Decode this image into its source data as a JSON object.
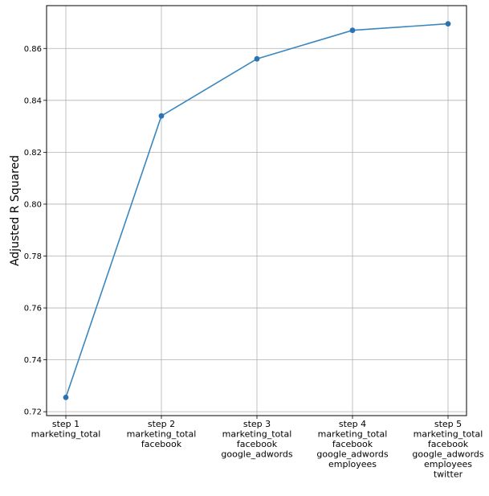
{
  "chart_data": {
    "type": "line",
    "title": "",
    "xlabel": "",
    "ylabel": "Adjusted R Squared",
    "ylim": [
      0.7185,
      0.8765
    ],
    "yticks": [
      0.72,
      0.74,
      0.76,
      0.78,
      0.8,
      0.82,
      0.84,
      0.86
    ],
    "ytick_labels": [
      "0.72",
      "0.74",
      "0.76",
      "0.78",
      "0.80",
      "0.82",
      "0.84",
      "0.86"
    ],
    "grid": true,
    "line_color": "#3a87c0",
    "marker_color": "#2b73b0",
    "categories": [
      [
        "step 1",
        "marketing_total"
      ],
      [
        "step 2",
        "marketing_total",
        "facebook"
      ],
      [
        "step 3",
        "marketing_total",
        "facebook",
        "google_adwords"
      ],
      [
        "step 4",
        "marketing_total",
        "facebook",
        "google_adwords",
        "employees"
      ],
      [
        "step 5",
        "marketing_total",
        "facebook",
        "google_adwords",
        "employees",
        "twitter"
      ]
    ],
    "values": [
      0.7255,
      0.834,
      0.856,
      0.867,
      0.8695
    ]
  }
}
